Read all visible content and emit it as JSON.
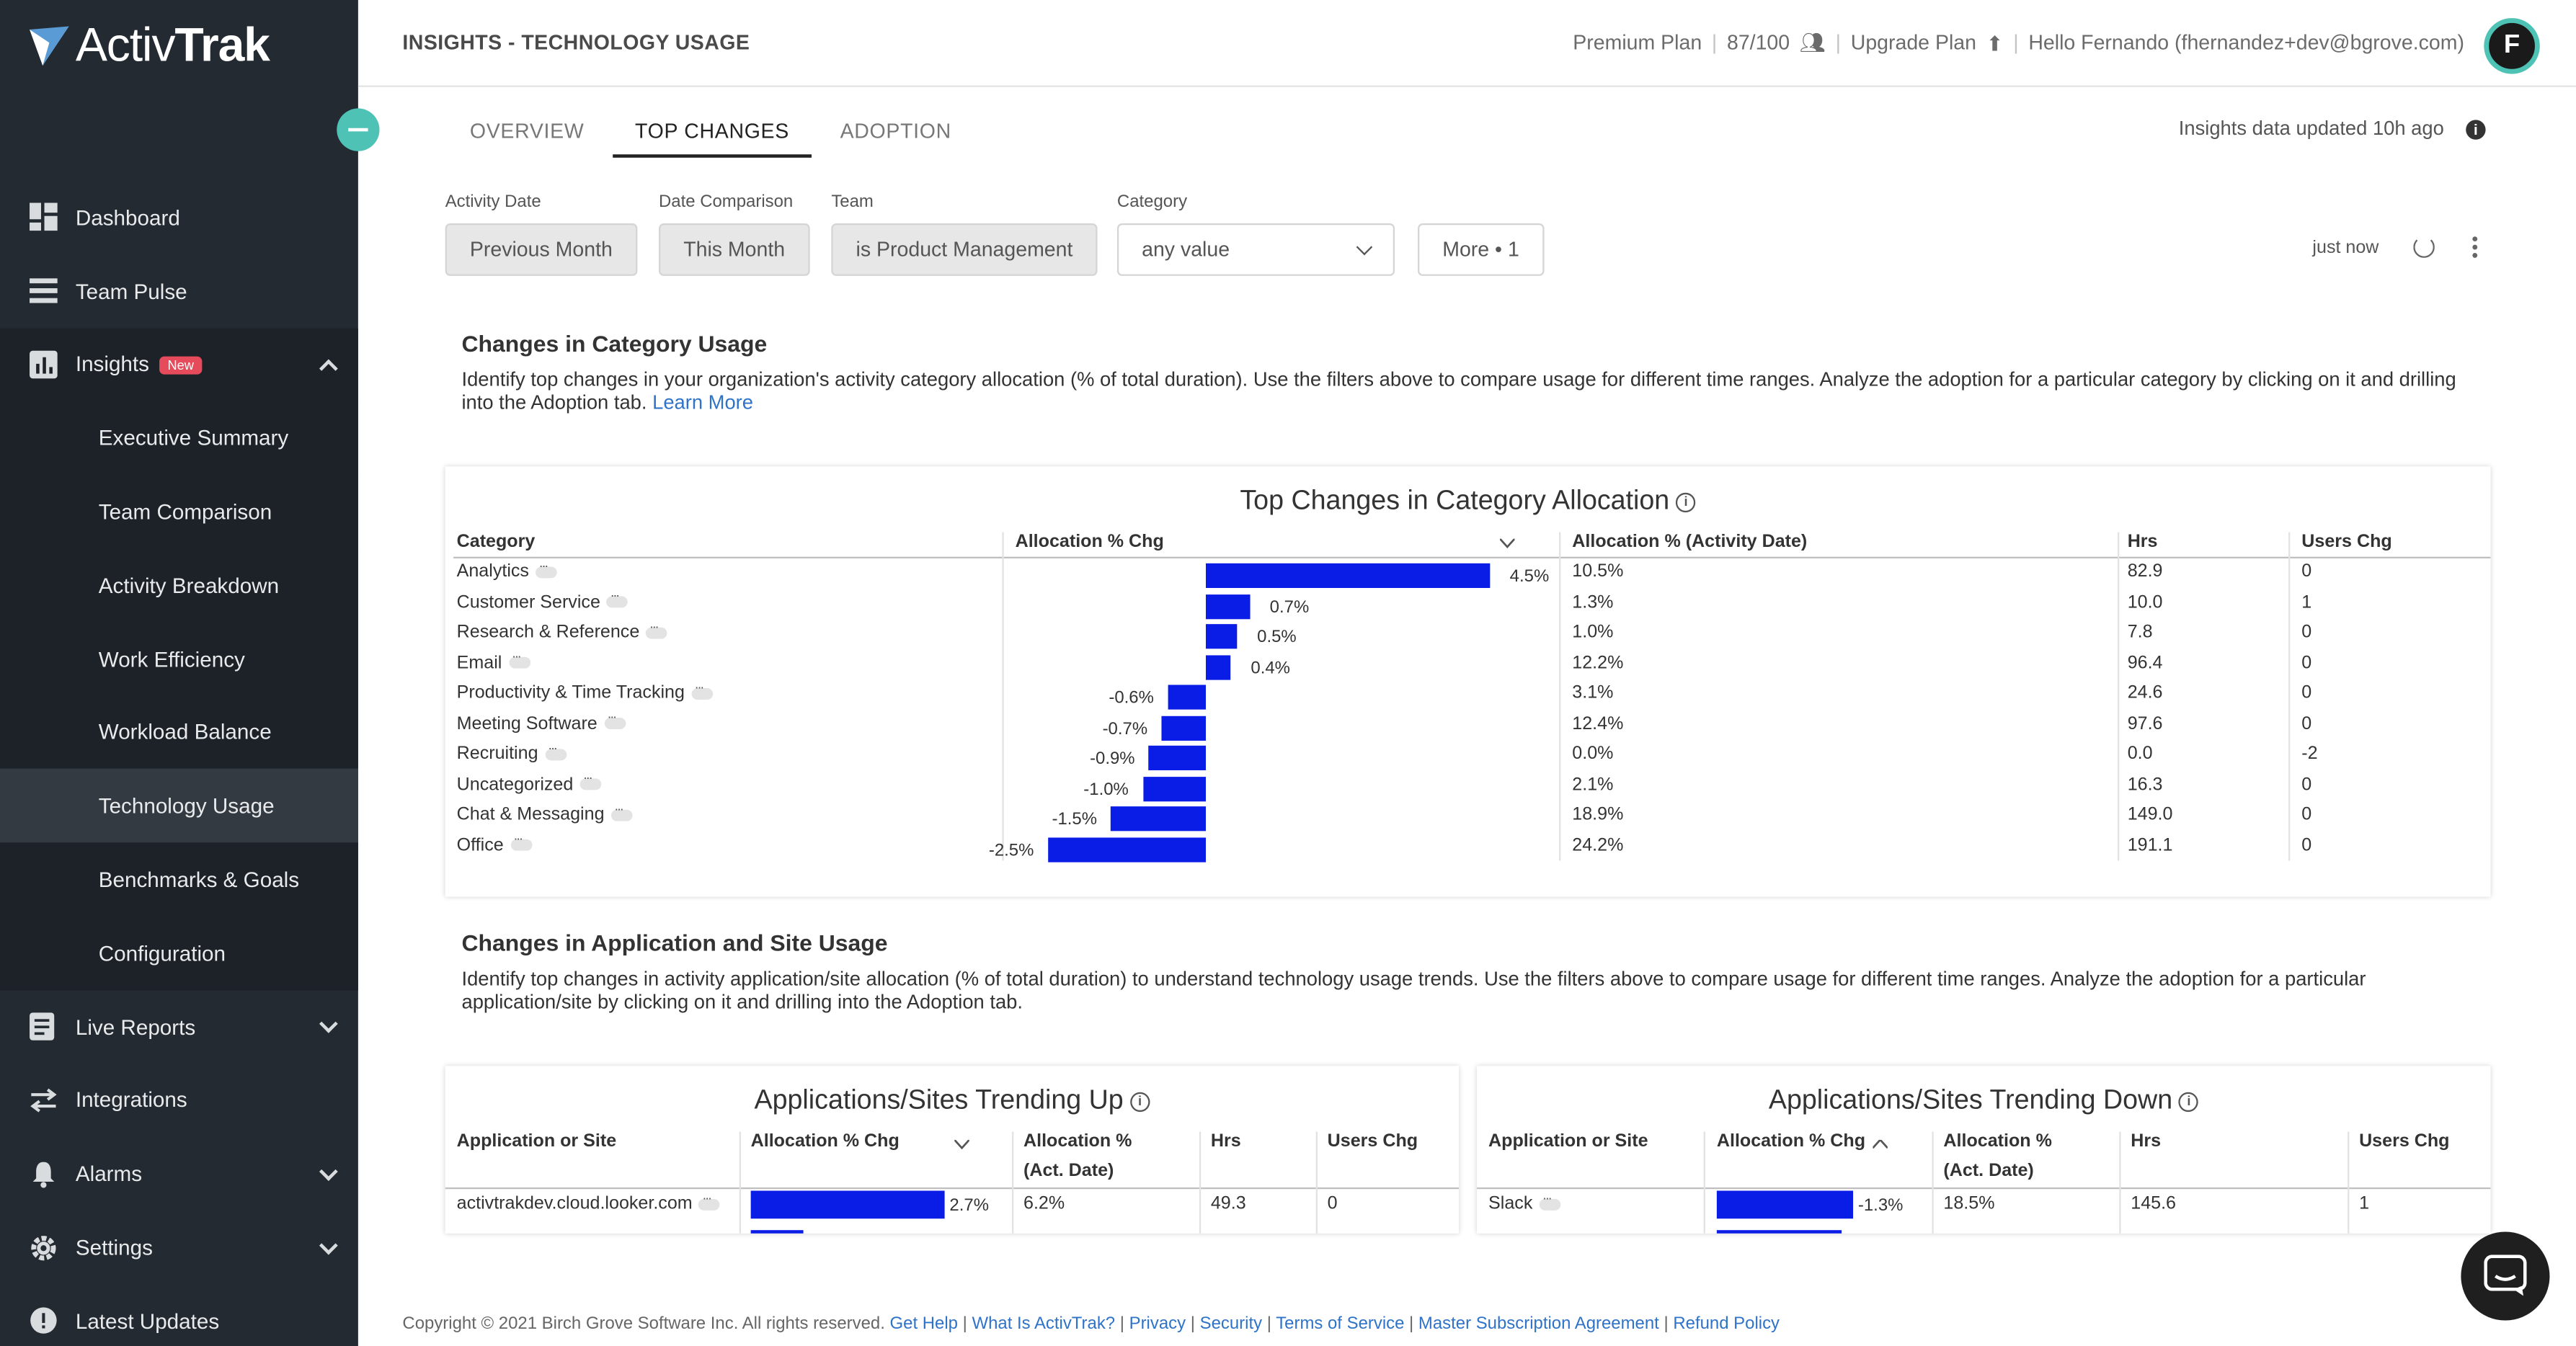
{
  "brand": {
    "name_light": "Activ",
    "name_bold": "Trak",
    "accent": "#4ec3b5"
  },
  "sidebar": {
    "items": [
      {
        "label": "Dashboard",
        "icon": "dashboard-icon"
      },
      {
        "label": "Team Pulse",
        "icon": "team-pulse-icon"
      },
      {
        "label": "Insights",
        "icon": "insights-icon",
        "badge": "New",
        "expanded": true
      },
      {
        "label": "Executive Summary"
      },
      {
        "label": "Team Comparison"
      },
      {
        "label": "Activity Breakdown"
      },
      {
        "label": "Work Efficiency"
      },
      {
        "label": "Workload Balance"
      },
      {
        "label": "Technology Usage",
        "active": true
      },
      {
        "label": "Benchmarks & Goals"
      },
      {
        "label": "Configuration"
      },
      {
        "label": "Live Reports",
        "icon": "live-reports-icon"
      },
      {
        "label": "Integrations",
        "icon": "integrations-icon"
      },
      {
        "label": "Alarms",
        "icon": "bell-icon"
      },
      {
        "label": "Settings",
        "icon": "gear-icon"
      },
      {
        "label": "Latest Updates",
        "icon": "updates-icon"
      }
    ]
  },
  "header": {
    "title": "INSIGHTS - TECHNOLOGY USAGE",
    "plan": "Premium Plan",
    "seats": "87/100",
    "upgrade": "Upgrade Plan",
    "greeting": "Hello Fernando (fhernandez+dev@bgrove.com)",
    "avatar_letter": "F"
  },
  "tabs": [
    "OVERVIEW",
    "TOP CHANGES",
    "ADOPTION"
  ],
  "active_tab": "TOP CHANGES",
  "insights_updated": "Insights data updated 10h ago",
  "filters": {
    "activity_date": {
      "label": "Activity Date",
      "value": "Previous Month"
    },
    "date_comparison": {
      "label": "Date Comparison",
      "value": "This Month"
    },
    "team": {
      "label": "Team",
      "value": "is Product Management"
    },
    "category": {
      "label": "Category",
      "value": "any value"
    },
    "more": "More • 1",
    "refreshed": "just now"
  },
  "category_section": {
    "title": "Changes in Category Usage",
    "desc": "Identify top changes in your organization's activity category allocation (% of total duration). Use the filters above to compare usage for different time ranges. Analyze the adoption for a particular category by clicking on it and drilling into the Adoption tab.",
    "learn_more": "Learn More"
  },
  "category_table": {
    "title": "Top Changes in Category Allocation",
    "headers": [
      "Category",
      "Allocation % Chg",
      "Allocation % (Activity Date)",
      "Hrs",
      "Users Chg"
    ],
    "rows": [
      {
        "category": "Analytics",
        "chg": 4.5,
        "chg_label": "4.5%",
        "alloc": "10.5%",
        "hrs": "82.9",
        "users": "0"
      },
      {
        "category": "Customer Service",
        "chg": 0.7,
        "chg_label": "0.7%",
        "alloc": "1.3%",
        "hrs": "10.0",
        "users": "1"
      },
      {
        "category": "Research & Reference",
        "chg": 0.5,
        "chg_label": "0.5%",
        "alloc": "1.0%",
        "hrs": "7.8",
        "users": "0"
      },
      {
        "category": "Email",
        "chg": 0.4,
        "chg_label": "0.4%",
        "alloc": "12.2%",
        "hrs": "96.4",
        "users": "0"
      },
      {
        "category": "Productivity & Time Tracking",
        "chg": -0.6,
        "chg_label": "-0.6%",
        "alloc": "3.1%",
        "hrs": "24.6",
        "users": "0"
      },
      {
        "category": "Meeting Software",
        "chg": -0.7,
        "chg_label": "-0.7%",
        "alloc": "12.4%",
        "hrs": "97.6",
        "users": "0"
      },
      {
        "category": "Recruiting",
        "chg": -0.9,
        "chg_label": "-0.9%",
        "alloc": "0.0%",
        "hrs": "0.0",
        "users": "-2"
      },
      {
        "category": "Uncategorized",
        "chg": -1.0,
        "chg_label": "-1.0%",
        "alloc": "2.1%",
        "hrs": "16.3",
        "users": "0"
      },
      {
        "category": "Chat & Messaging",
        "chg": -1.5,
        "chg_label": "-1.5%",
        "alloc": "18.9%",
        "hrs": "149.0",
        "users": "0"
      },
      {
        "category": "Office",
        "chg": -2.5,
        "chg_label": "-2.5%",
        "alloc": "24.2%",
        "hrs": "191.1",
        "users": "0"
      }
    ]
  },
  "app_section": {
    "title": "Changes in Application and Site Usage",
    "desc": "Identify top changes in activity application/site allocation (% of total duration) to understand technology usage trends. Use the filters above to compare usage for different time ranges. Analyze the adoption for a particular application/site by clicking on it and drilling into the Adoption tab."
  },
  "trending_up": {
    "title": "Applications/Sites Trending Up",
    "headers": [
      "Application or Site",
      "Allocation % Chg",
      "Allocation %",
      "(Act. Date)",
      "Hrs",
      "Users Chg"
    ],
    "rows": [
      {
        "app": "activtrakdev.cloud.looker.com",
        "chg": 2.7,
        "chg_label": "2.7%",
        "alloc": "6.2%",
        "hrs": "49.3",
        "users": "0"
      }
    ]
  },
  "trending_down": {
    "title": "Applications/Sites Trending Down",
    "headers": [
      "Application or Site",
      "Allocation % Chg",
      "Allocation %",
      "(Act. Date)",
      "Hrs",
      "Users Chg"
    ],
    "rows": [
      {
        "app": "Slack",
        "chg": -1.3,
        "chg_label": "-1.3%",
        "alloc": "18.5%",
        "hrs": "145.6",
        "users": "1"
      }
    ]
  },
  "footer": {
    "copyright": "Copyright © 2021 Birch Grove Software Inc. All rights reserved.",
    "links": [
      "Get Help",
      "What Is ActivTrak?",
      "Privacy",
      "Security",
      "Terms of Service",
      "Master Subscription Agreement",
      "Refund Policy"
    ]
  },
  "colors": {
    "bar": "#0a1de6",
    "sidebar": "#242a31",
    "accent": "#4ec3b5",
    "link": "#2f73c9"
  }
}
